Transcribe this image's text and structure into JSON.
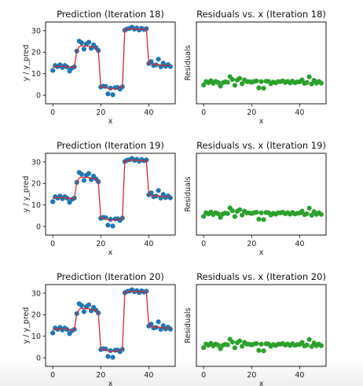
{
  "figure": {
    "colors": {
      "points": "#1f77b4",
      "fit": "#d62728",
      "residuals": "#2ca02c",
      "axes": "#000000"
    }
  },
  "chart_data": [
    {
      "type": "scatter",
      "title": "Prediction (Iteration 18)",
      "xlabel": "x",
      "ylabel": "y / y_pred",
      "xlim": [
        -3,
        51
      ],
      "ylim": [
        -4,
        34
      ],
      "xticks": [
        0,
        20,
        40
      ],
      "yticks": [
        0,
        10,
        20,
        30
      ],
      "grid": false,
      "series": [
        {
          "kind": "scatter",
          "color": "#1f77b4",
          "x": [
            0,
            1,
            2,
            3,
            4,
            5,
            6,
            7,
            8,
            9,
            10,
            11,
            12,
            13,
            14,
            15,
            16,
            17,
            18,
            19,
            20,
            21,
            22,
            23,
            24,
            25,
            26,
            27,
            28,
            29,
            30,
            31,
            32,
            33,
            34,
            35,
            36,
            37,
            38,
            39,
            40,
            41,
            42,
            43,
            44,
            45,
            46,
            47,
            48,
            49
          ],
          "y": [
            11.5,
            13.8,
            13.2,
            14.1,
            12.9,
            13.8,
            13.1,
            11.2,
            12.6,
            13.2,
            20.5,
            25.1,
            24.3,
            21.4,
            23.8,
            24.6,
            21.8,
            23.4,
            22.1,
            20.8,
            3.8,
            4.2,
            4.1,
            0.6,
            3.3,
            0.2,
            3.5,
            3.6,
            2.8,
            3.9,
            30.2,
            30.8,
            31.0,
            31.6,
            30.7,
            31.2,
            30.3,
            31.1,
            30.5,
            30.9,
            14.7,
            15.6,
            13.8,
            14.1,
            16.7,
            13.2,
            14.9,
            13.4,
            14.2,
            13.3
          ]
        },
        {
          "kind": "line",
          "color": "#d62728",
          "x": [
            0,
            1,
            2,
            3,
            4,
            5,
            6,
            7,
            8,
            9,
            10,
            11,
            12,
            13,
            14,
            15,
            16,
            17,
            18,
            19,
            20,
            21,
            22,
            23,
            24,
            25,
            26,
            27,
            28,
            29,
            30,
            31,
            32,
            33,
            34,
            35,
            36,
            37,
            38,
            39,
            40,
            41,
            42,
            43,
            44,
            45,
            46,
            47,
            48,
            49
          ],
          "y": [
            12.8,
            13.4,
            13.4,
            13.4,
            13.4,
            13.4,
            13.2,
            13.0,
            12.8,
            13.0,
            20.5,
            22.5,
            23.0,
            22.8,
            22.8,
            22.8,
            22.5,
            22.3,
            21.8,
            20.5,
            3.8,
            3.8,
            3.5,
            3.2,
            3.0,
            3.0,
            3.0,
            3.2,
            3.5,
            3.8,
            30.5,
            30.5,
            30.7,
            31.0,
            30.8,
            30.8,
            30.6,
            30.6,
            30.7,
            30.8,
            14.5,
            14.5,
            14.3,
            14.2,
            14.2,
            14.0,
            14.0,
            13.8,
            13.8,
            13.7
          ]
        }
      ]
    },
    {
      "type": "scatter",
      "title": "Residuals vs. x (Iteration 18)",
      "xlabel": "x",
      "ylabel": "Residuals",
      "xlim": [
        -3,
        51
      ],
      "ylim": [
        -10,
        28
      ],
      "xticks": [
        0,
        20,
        40
      ],
      "yticks": [],
      "grid": false,
      "series": [
        {
          "kind": "scatter",
          "color": "#2ca02c",
          "x": [
            0,
            1,
            2,
            3,
            4,
            5,
            6,
            7,
            8,
            9,
            10,
            11,
            12,
            13,
            14,
            15,
            16,
            17,
            18,
            19,
            20,
            21,
            22,
            23,
            24,
            25,
            26,
            27,
            28,
            29,
            30,
            31,
            32,
            33,
            34,
            35,
            36,
            37,
            38,
            39,
            40,
            41,
            42,
            43,
            44,
            45,
            46,
            47,
            48,
            49
          ],
          "y": [
            -1.3,
            0.4,
            -0.2,
            0.7,
            -0.5,
            0.4,
            -0.1,
            -1.8,
            -0.2,
            0.2,
            0.0,
            2.6,
            1.3,
            -1.4,
            1.0,
            1.8,
            -0.7,
            1.1,
            0.3,
            0.3,
            0.0,
            0.4,
            0.6,
            -2.6,
            0.3,
            -2.8,
            0.5,
            0.4,
            -0.7,
            0.1,
            -0.3,
            0.3,
            0.3,
            0.6,
            -0.1,
            0.4,
            -0.3,
            0.5,
            -0.2,
            0.1,
            0.2,
            1.1,
            -0.5,
            -0.1,
            2.5,
            -0.8,
            0.9,
            -0.4,
            0.4,
            -0.4
          ]
        }
      ]
    },
    {
      "type": "scatter",
      "title": "Prediction (Iteration 19)",
      "xlabel": "x",
      "ylabel": "y / y_pred",
      "xlim": [
        -3,
        51
      ],
      "ylim": [
        -4,
        34
      ],
      "xticks": [
        0,
        20,
        40
      ],
      "yticks": [
        0,
        10,
        20,
        30
      ],
      "grid": false,
      "series": [
        {
          "kind": "scatter",
          "color": "#1f77b4",
          "x": [
            0,
            1,
            2,
            3,
            4,
            5,
            6,
            7,
            8,
            9,
            10,
            11,
            12,
            13,
            14,
            15,
            16,
            17,
            18,
            19,
            20,
            21,
            22,
            23,
            24,
            25,
            26,
            27,
            28,
            29,
            30,
            31,
            32,
            33,
            34,
            35,
            36,
            37,
            38,
            39,
            40,
            41,
            42,
            43,
            44,
            45,
            46,
            47,
            48,
            49
          ],
          "y": [
            11.5,
            13.8,
            13.2,
            14.1,
            12.9,
            13.8,
            13.1,
            11.2,
            12.6,
            13.2,
            20.5,
            25.1,
            24.3,
            21.4,
            23.8,
            24.6,
            21.8,
            23.4,
            22.1,
            20.8,
            3.8,
            4.2,
            4.1,
            0.6,
            3.3,
            0.2,
            3.5,
            3.6,
            2.8,
            3.9,
            30.2,
            30.8,
            31.0,
            31.6,
            30.7,
            31.2,
            30.3,
            31.1,
            30.5,
            30.9,
            14.7,
            15.6,
            13.8,
            14.1,
            16.7,
            13.2,
            14.9,
            13.4,
            14.2,
            13.3
          ]
        },
        {
          "kind": "line",
          "color": "#d62728",
          "x": [
            0,
            1,
            2,
            3,
            4,
            5,
            6,
            7,
            8,
            9,
            10,
            11,
            12,
            13,
            14,
            15,
            16,
            17,
            18,
            19,
            20,
            21,
            22,
            23,
            24,
            25,
            26,
            27,
            28,
            29,
            30,
            31,
            32,
            33,
            34,
            35,
            36,
            37,
            38,
            39,
            40,
            41,
            42,
            43,
            44,
            45,
            46,
            47,
            48,
            49
          ],
          "y": [
            12.8,
            13.4,
            13.4,
            13.4,
            13.4,
            13.4,
            13.2,
            13.0,
            12.8,
            13.0,
            20.5,
            22.5,
            23.0,
            22.8,
            22.8,
            22.8,
            22.5,
            22.3,
            21.8,
            20.5,
            3.8,
            3.8,
            3.5,
            3.2,
            3.0,
            3.0,
            3.0,
            3.2,
            3.5,
            3.8,
            30.5,
            30.5,
            30.7,
            31.0,
            30.8,
            30.8,
            30.6,
            30.6,
            30.7,
            30.8,
            14.5,
            14.5,
            14.3,
            14.2,
            14.2,
            14.0,
            14.0,
            13.8,
            13.8,
            13.7
          ]
        }
      ]
    },
    {
      "type": "scatter",
      "title": "Residuals vs. x (Iteration 19)",
      "xlabel": "x",
      "ylabel": "Residuals",
      "xlim": [
        -3,
        51
      ],
      "ylim": [
        -10,
        28
      ],
      "xticks": [
        0,
        20,
        40
      ],
      "yticks": [],
      "grid": false,
      "series": [
        {
          "kind": "scatter",
          "color": "#2ca02c",
          "x": [
            0,
            1,
            2,
            3,
            4,
            5,
            6,
            7,
            8,
            9,
            10,
            11,
            12,
            13,
            14,
            15,
            16,
            17,
            18,
            19,
            20,
            21,
            22,
            23,
            24,
            25,
            26,
            27,
            28,
            29,
            30,
            31,
            32,
            33,
            34,
            35,
            36,
            37,
            38,
            39,
            40,
            41,
            42,
            43,
            44,
            45,
            46,
            47,
            48,
            49
          ],
          "y": [
            -1.3,
            0.4,
            -0.2,
            0.7,
            -0.5,
            0.4,
            -0.1,
            -1.8,
            -0.2,
            0.2,
            0.0,
            2.6,
            1.3,
            -1.4,
            1.0,
            1.8,
            -0.7,
            1.1,
            0.3,
            0.3,
            0.0,
            0.4,
            0.6,
            -2.6,
            0.3,
            -2.8,
            0.5,
            0.4,
            -0.7,
            0.1,
            -0.3,
            0.3,
            0.3,
            0.6,
            -0.1,
            0.4,
            -0.3,
            0.5,
            -0.2,
            0.1,
            0.2,
            1.1,
            -0.5,
            -0.1,
            2.5,
            -0.8,
            0.9,
            -0.4,
            0.4,
            -0.4
          ]
        }
      ]
    },
    {
      "type": "scatter",
      "title": "Prediction (Iteration 20)",
      "xlabel": "x",
      "ylabel": "y / y_pred",
      "xlim": [
        -3,
        51
      ],
      "ylim": [
        -4,
        34
      ],
      "xticks": [
        0,
        20,
        40
      ],
      "yticks": [
        0,
        10,
        20,
        30
      ],
      "grid": false,
      "series": [
        {
          "kind": "scatter",
          "color": "#1f77b4",
          "x": [
            0,
            1,
            2,
            3,
            4,
            5,
            6,
            7,
            8,
            9,
            10,
            11,
            12,
            13,
            14,
            15,
            16,
            17,
            18,
            19,
            20,
            21,
            22,
            23,
            24,
            25,
            26,
            27,
            28,
            29,
            30,
            31,
            32,
            33,
            34,
            35,
            36,
            37,
            38,
            39,
            40,
            41,
            42,
            43,
            44,
            45,
            46,
            47,
            48,
            49
          ],
          "y": [
            11.5,
            13.8,
            13.2,
            14.1,
            12.9,
            13.8,
            13.1,
            11.2,
            12.6,
            13.2,
            20.5,
            25.1,
            24.3,
            21.4,
            23.8,
            24.6,
            21.8,
            23.4,
            22.1,
            20.8,
            3.8,
            4.2,
            4.1,
            0.6,
            3.3,
            0.2,
            3.5,
            3.6,
            2.8,
            3.9,
            30.2,
            30.8,
            31.0,
            31.6,
            30.7,
            31.2,
            30.3,
            31.1,
            30.5,
            30.9,
            14.7,
            15.6,
            13.8,
            14.1,
            16.7,
            13.2,
            14.9,
            13.4,
            14.2,
            13.3
          ]
        },
        {
          "kind": "line",
          "color": "#d62728",
          "x": [
            0,
            1,
            2,
            3,
            4,
            5,
            6,
            7,
            8,
            9,
            10,
            11,
            12,
            13,
            14,
            15,
            16,
            17,
            18,
            19,
            20,
            21,
            22,
            23,
            24,
            25,
            26,
            27,
            28,
            29,
            30,
            31,
            32,
            33,
            34,
            35,
            36,
            37,
            38,
            39,
            40,
            41,
            42,
            43,
            44,
            45,
            46,
            47,
            48,
            49
          ],
          "y": [
            12.8,
            13.4,
            13.4,
            13.4,
            13.4,
            13.4,
            13.2,
            13.0,
            12.8,
            13.0,
            20.5,
            22.5,
            23.0,
            22.8,
            22.8,
            22.8,
            22.5,
            22.3,
            21.8,
            20.5,
            3.8,
            3.8,
            3.5,
            3.2,
            3.0,
            3.0,
            3.0,
            3.2,
            3.5,
            3.8,
            30.5,
            30.5,
            30.7,
            31.0,
            30.8,
            30.8,
            30.6,
            30.6,
            30.7,
            30.8,
            14.5,
            14.5,
            14.3,
            14.2,
            14.2,
            14.0,
            14.0,
            13.8,
            13.8,
            13.7
          ]
        }
      ]
    },
    {
      "type": "scatter",
      "title": "Residuals vs. x (Iteration 20)",
      "xlabel": "x",
      "ylabel": "Residuals",
      "xlim": [
        -3,
        51
      ],
      "ylim": [
        -10,
        28
      ],
      "xticks": [
        0,
        20,
        40
      ],
      "yticks": [],
      "grid": false,
      "series": [
        {
          "kind": "scatter",
          "color": "#2ca02c",
          "x": [
            0,
            1,
            2,
            3,
            4,
            5,
            6,
            7,
            8,
            9,
            10,
            11,
            12,
            13,
            14,
            15,
            16,
            17,
            18,
            19,
            20,
            21,
            22,
            23,
            24,
            25,
            26,
            27,
            28,
            29,
            30,
            31,
            32,
            33,
            34,
            35,
            36,
            37,
            38,
            39,
            40,
            41,
            42,
            43,
            44,
            45,
            46,
            47,
            48,
            49
          ],
          "y": [
            -1.3,
            0.4,
            -0.2,
            0.7,
            -0.5,
            0.4,
            -0.1,
            -1.8,
            -0.2,
            0.2,
            0.0,
            2.6,
            1.3,
            -1.4,
            1.0,
            1.8,
            -0.7,
            1.1,
            0.3,
            0.3,
            0.0,
            0.4,
            0.6,
            -2.6,
            0.3,
            -2.8,
            0.5,
            0.4,
            -0.7,
            0.1,
            -0.3,
            0.3,
            0.3,
            0.6,
            -0.1,
            0.4,
            -0.3,
            0.5,
            -0.2,
            0.1,
            0.2,
            1.1,
            -0.5,
            -0.1,
            2.5,
            -0.8,
            0.9,
            -0.4,
            0.4,
            -0.4
          ]
        }
      ]
    }
  ]
}
